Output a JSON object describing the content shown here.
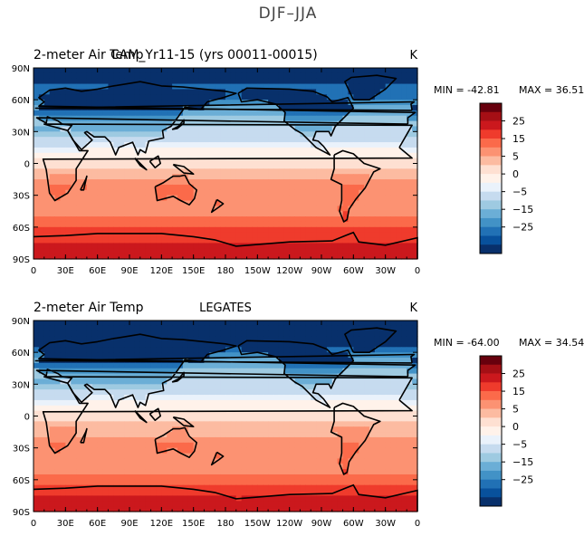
{
  "figure_title": "DJF–JJA",
  "colorbar": {
    "tick_labels": [
      "25",
      "15",
      "5",
      "0",
      "−5",
      "−15",
      "−25"
    ],
    "colors": [
      "#67000d",
      "#a50f15",
      "#cb181d",
      "#ef3b2c",
      "#fb6a4a",
      "#fc9272",
      "#fcbba1",
      "#fee0d2",
      "#fff2ea",
      "#eaf2fb",
      "#c6dbef",
      "#9ecae1",
      "#6baed6",
      "#4292c6",
      "#2171b5",
      "#08519c",
      "#08306b"
    ]
  },
  "chart_data": [
    {
      "type": "heatmap",
      "title_left": "2-meter Air Temp",
      "title_overlap": "CAM_Yr11-15 (yrs 00011-00015)",
      "title_center": "",
      "units": "K",
      "min_label": "MIN = -42.81",
      "max_label": "MAX =  36.51",
      "min": -42.81,
      "max": 36.51,
      "y_ticks": [
        "90N",
        "60N",
        "30N",
        "0",
        "30S",
        "60S",
        "90S"
      ],
      "x_ticks": [
        "0",
        "30E",
        "60E",
        "90E",
        "120E",
        "150E",
        "180",
        "150W",
        "120W",
        "90W",
        "60W",
        "30W",
        "0"
      ],
      "zonal_anomaly_by_lat": [
        -34,
        -31,
        -27,
        -22,
        -15,
        -8,
        -3,
        1,
        5,
        8,
        10,
        12,
        17,
        21,
        24
      ]
    },
    {
      "type": "heatmap",
      "title_left": "2-meter Air Temp",
      "title_overlap": "",
      "title_center": "LEGATES",
      "units": "K",
      "min_label": "MIN = -64.00",
      "max_label": "MAX =  34.54",
      "min": -64.0,
      "max": 34.54,
      "y_ticks": [
        "90N",
        "60N",
        "30N",
        "0",
        "30S",
        "60S",
        "90S"
      ],
      "x_ticks": [
        "0",
        "30E",
        "60E",
        "90E",
        "120E",
        "150E",
        "180",
        "150W",
        "120W",
        "90W",
        "60W",
        "30W",
        "0"
      ],
      "zonal_anomaly_by_lat": [
        -38,
        -34,
        -29,
        -23,
        -15,
        -8,
        -3,
        1,
        5,
        7,
        9,
        11,
        15,
        19,
        21
      ]
    }
  ]
}
